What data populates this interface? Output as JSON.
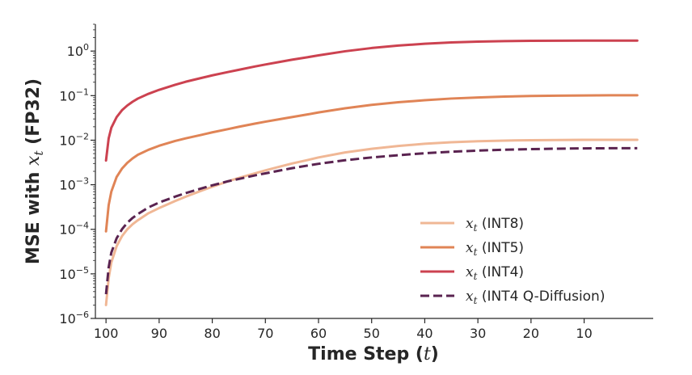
{
  "chart_data": {
    "type": "line",
    "title": "",
    "xlabel": "Time Step (t)",
    "ylabel": "MSE with x_t (FP32)",
    "x_scale": "linear-reversed",
    "y_scale": "log",
    "xlim": [
      102,
      -3
    ],
    "ylim": [
      1e-06,
      4
    ],
    "x_ticks": [
      100,
      90,
      80,
      70,
      60,
      50,
      40,
      30,
      20,
      10
    ],
    "y_ticks": [
      1e-06,
      1e-05,
      0.0001,
      0.001,
      0.01,
      0.1,
      1
    ],
    "y_tick_labels": [
      {
        "base": "10",
        "exp": "−6"
      },
      {
        "base": "10",
        "exp": "−5"
      },
      {
        "base": "10",
        "exp": "−4"
      },
      {
        "base": "10",
        "exp": "−3"
      },
      {
        "base": "10",
        "exp": "−2"
      },
      {
        "base": "10",
        "exp": "−1"
      },
      {
        "base": "10",
        "exp": "0"
      }
    ],
    "grid": false,
    "legend_position": "lower-right",
    "x": [
      100,
      99.5,
      99,
      98,
      97,
      96,
      95,
      94,
      92,
      90,
      87,
      85,
      82,
      80,
      77,
      75,
      72,
      70,
      67,
      65,
      62,
      60,
      55,
      50,
      45,
      40,
      35,
      30,
      25,
      20,
      15,
      10,
      5,
      0
    ],
    "series": [
      {
        "name": "x_t (INT8)",
        "color": "#F0B795",
        "dash": "solid",
        "values": [
          2e-06,
          8e-06,
          1.8e-05,
          4.2e-05,
          7e-05,
          0.0001,
          0.00013,
          0.00016,
          0.00023,
          0.0003,
          0.00043,
          0.00054,
          0.00074,
          0.0009,
          0.0012,
          0.00142,
          0.0018,
          0.0021,
          0.0026,
          0.003,
          0.0036,
          0.0041,
          0.0053,
          0.0064,
          0.0074,
          0.0083,
          0.009,
          0.0095,
          0.0098,
          0.01,
          0.0101,
          0.0102,
          0.0102,
          0.0102
        ]
      },
      {
        "name": "x_t (INT5)",
        "color": "#E08456",
        "dash": "solid",
        "values": [
          9e-05,
          0.00035,
          0.0007,
          0.0015,
          0.0023,
          0.0031,
          0.0039,
          0.0047,
          0.0061,
          0.0075,
          0.0096,
          0.011,
          0.0132,
          0.015,
          0.0178,
          0.02,
          0.0235,
          0.026,
          0.03,
          0.033,
          0.038,
          0.042,
          0.052,
          0.062,
          0.071,
          0.079,
          0.086,
          0.091,
          0.095,
          0.098,
          0.1,
          0.101,
          0.102,
          0.102
        ]
      },
      {
        "name": "x_t (INT4)",
        "color": "#CC4250",
        "dash": "solid",
        "values": [
          0.0035,
          0.011,
          0.019,
          0.033,
          0.047,
          0.06,
          0.073,
          0.086,
          0.11,
          0.135,
          0.175,
          0.205,
          0.25,
          0.285,
          0.34,
          0.38,
          0.45,
          0.5,
          0.58,
          0.64,
          0.73,
          0.8,
          0.99,
          1.17,
          1.33,
          1.46,
          1.56,
          1.63,
          1.67,
          1.7,
          1.71,
          1.72,
          1.72,
          1.72
        ]
      },
      {
        "name": "x_t (INT4 Q-Diffusion)",
        "color": "#5A2350",
        "dash": "dashed",
        "values": [
          3.5e-06,
          1.4e-05,
          3e-05,
          6.3e-05,
          0.0001,
          0.00014,
          0.00018,
          0.00022,
          0.00031,
          0.0004,
          0.00054,
          0.00065,
          0.00083,
          0.00097,
          0.0012,
          0.00135,
          0.00162,
          0.0018,
          0.00212,
          0.00235,
          0.0027,
          0.00295,
          0.00355,
          0.0041,
          0.0046,
          0.0051,
          0.0055,
          0.00585,
          0.0061,
          0.0063,
          0.00645,
          0.00655,
          0.0066,
          0.0066
        ]
      }
    ]
  },
  "legend_labels": {
    "math_var": "x",
    "math_sub": "t"
  },
  "axis_titles": {
    "x_prefix": "Time Step (",
    "x_var": "t",
    "x_suffix": ")",
    "y_prefix": "MSE with ",
    "y_var": "x",
    "y_sub": "t",
    "y_suffix": " (FP32)"
  }
}
